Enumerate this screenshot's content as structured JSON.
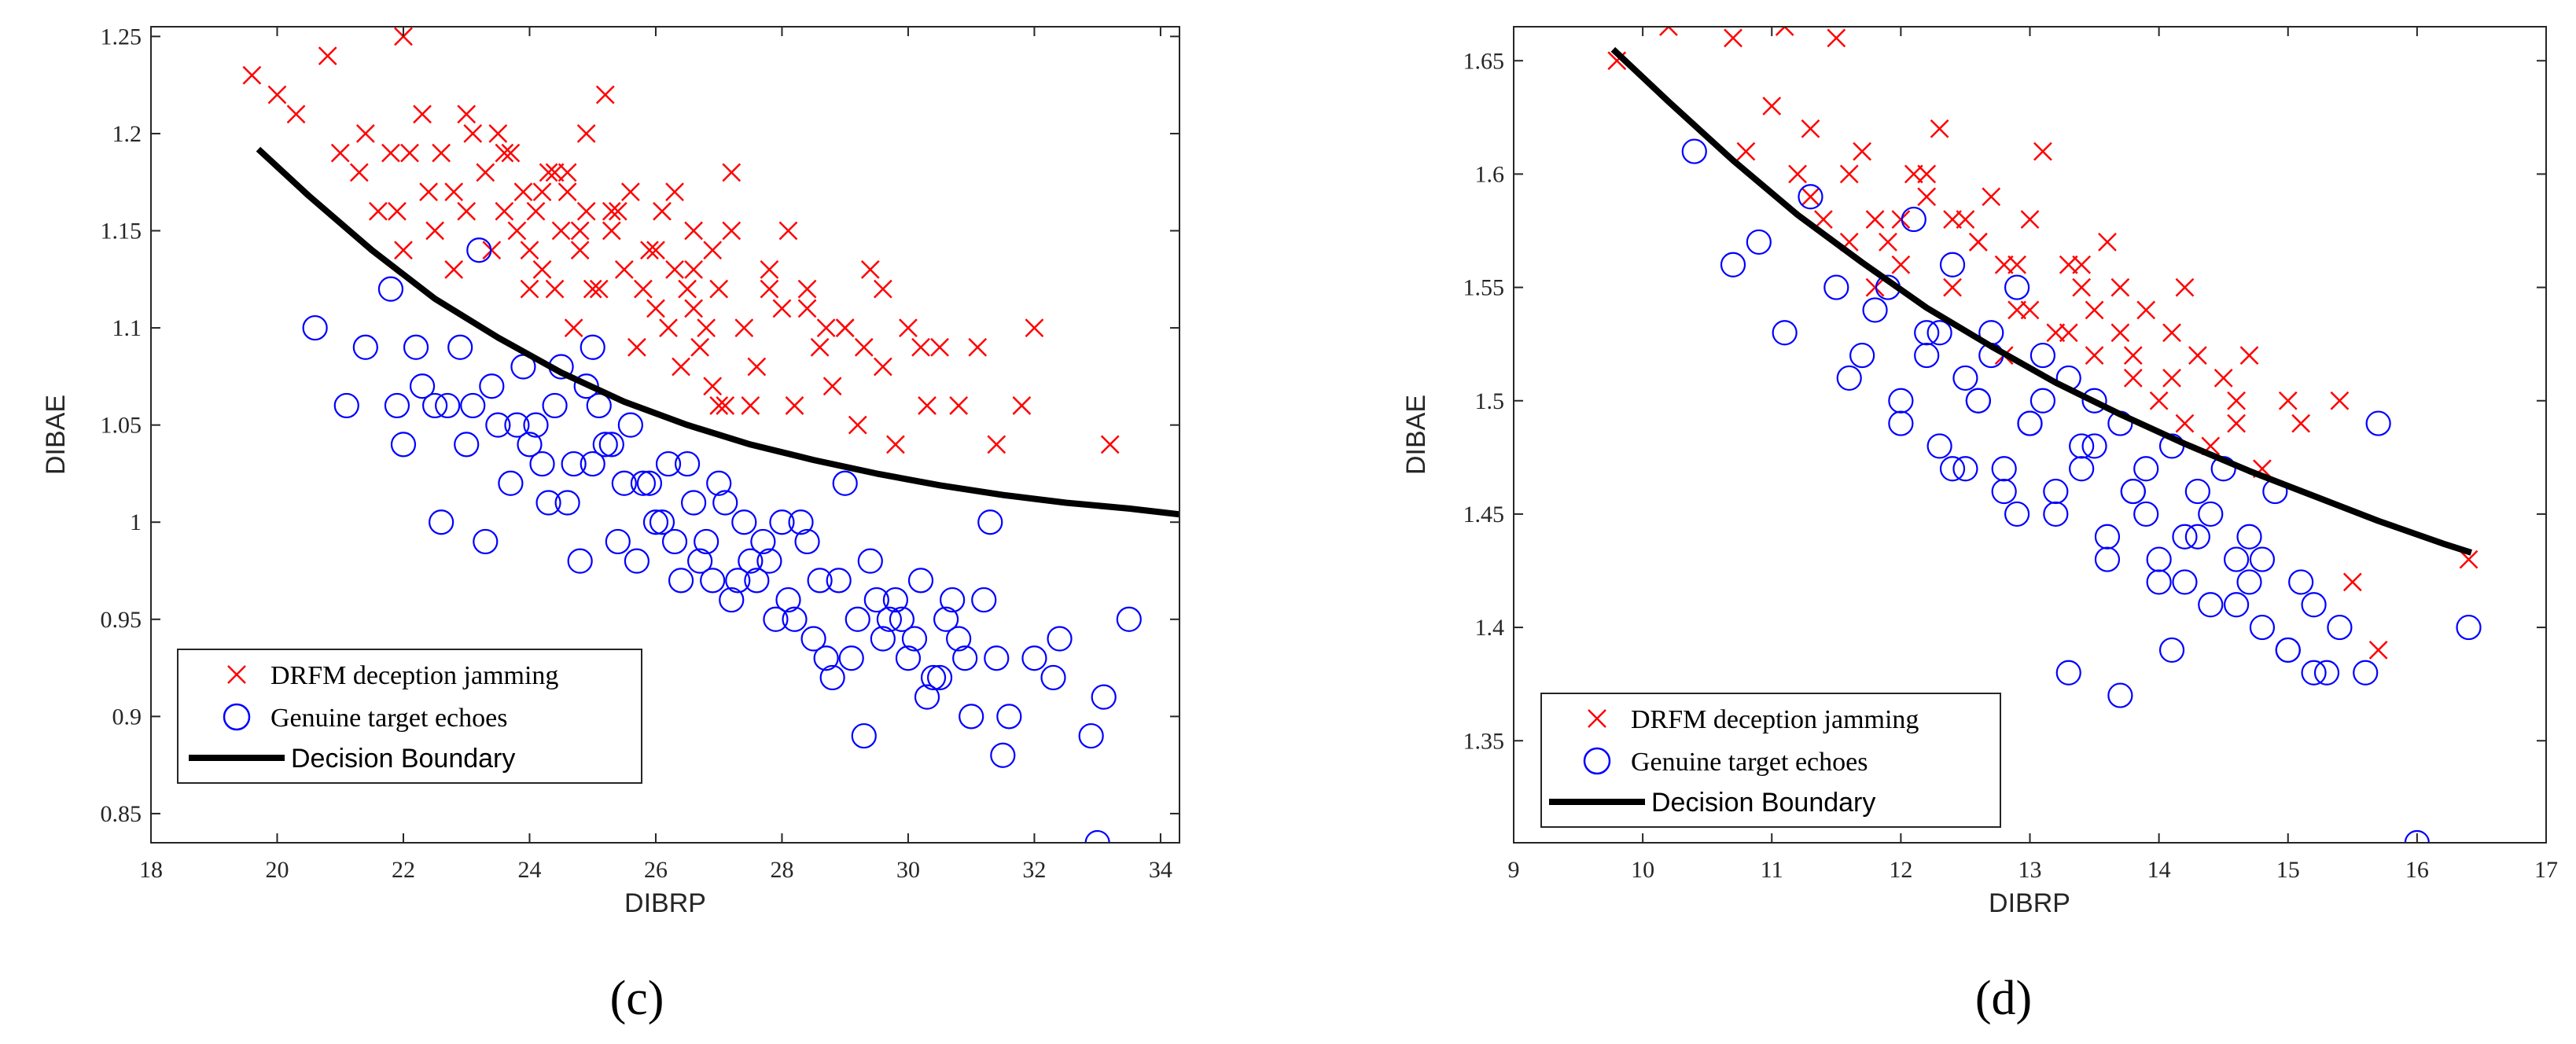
{
  "figure": {
    "captions": [
      "(c)",
      "(d)"
    ],
    "colors": {
      "jamming": "#ff0000",
      "genuine": "#0000ff",
      "boundary": "#000000",
      "axis": "#262626"
    }
  },
  "chart_data": [
    {
      "type": "scatter",
      "panel": "(c)",
      "title": "",
      "xlabel": "DIBRP",
      "ylabel": "DIBAE",
      "xlim": [
        18,
        34.3
      ],
      "ylim": [
        0.835,
        1.255
      ],
      "xticks": [
        18,
        20,
        22,
        24,
        26,
        28,
        30,
        32,
        34
      ],
      "yticks": [
        0.85,
        0.9,
        0.95,
        1,
        1.05,
        1.1,
        1.15,
        1.2,
        1.25
      ],
      "xtick_labels": [
        "18",
        "20",
        "22",
        "24",
        "26",
        "28",
        "30",
        "32",
        "34"
      ],
      "ytick_labels": [
        "0.85",
        "0.9",
        "0.95",
        "1",
        "1.05",
        "1.1",
        "1.15",
        "1.2",
        "1.25"
      ],
      "legend_position": "bottom-left",
      "series": [
        {
          "name": "DRFM deception jamming",
          "marker": "x",
          "color": "#ff0000",
          "x": [
            19.6,
            20.0,
            20.3,
            20.8,
            21.0,
            21.3,
            21.4,
            21.6,
            21.8,
            22.0,
            22.1,
            22.3,
            22.5,
            22.6,
            22.8,
            23.0,
            23.1,
            23.3,
            23.4,
            23.6,
            23.7,
            23.8,
            23.9,
            24.0,
            24.1,
            24.2,
            24.3,
            24.4,
            24.5,
            24.6,
            24.7,
            24.8,
            24.9,
            25.0,
            25.2,
            25.3,
            25.5,
            25.6,
            25.8,
            25.9,
            26.0,
            26.1,
            26.2,
            26.3,
            26.4,
            26.5,
            26.6,
            26.7,
            26.8,
            26.9,
            27.0,
            27.1,
            27.2,
            27.4,
            27.6,
            27.8,
            28.0,
            28.2,
            28.4,
            28.6,
            28.8,
            29.0,
            29.2,
            29.4,
            29.6,
            29.8,
            30.0,
            30.3,
            30.5,
            30.8,
            31.1,
            31.4,
            31.8,
            32.0,
            33.2,
            22.0,
            22.4,
            23.0,
            23.6,
            24.2,
            24.8,
            25.4,
            26.0,
            26.6,
            27.2,
            27.8,
            28.4,
            29.0,
            29.6,
            30.2,
            21.9,
            22.8,
            23.5,
            24.0,
            24.6,
            25.1,
            25.7,
            26.3,
            26.9,
            27.5,
            28.1,
            28.7,
            29.3,
            24.4,
            24.9,
            25.3,
            26.6,
            27.0
          ],
          "y": [
            1.23,
            1.22,
            1.21,
            1.24,
            1.19,
            1.18,
            1.2,
            1.16,
            1.19,
            1.25,
            1.19,
            1.21,
            1.15,
            1.19,
            1.17,
            1.21,
            1.2,
            1.18,
            1.14,
            1.16,
            1.19,
            1.15,
            1.17,
            1.14,
            1.16,
            1.13,
            1.18,
            1.12,
            1.15,
            1.17,
            1.1,
            1.14,
            1.16,
            1.12,
            1.22,
            1.15,
            1.13,
            1.17,
            1.12,
            1.14,
            1.11,
            1.16,
            1.1,
            1.13,
            1.08,
            1.12,
            1.15,
            1.09,
            1.1,
            1.07,
            1.12,
            1.06,
            1.18,
            1.1,
            1.08,
            1.13,
            1.11,
            1.06,
            1.12,
            1.09,
            1.07,
            1.1,
            1.05,
            1.13,
            1.08,
            1.04,
            1.1,
            1.06,
            1.09,
            1.06,
            1.09,
            1.04,
            1.06,
            1.1,
            1.04,
            1.14,
            1.17,
            1.16,
            1.19,
            1.17,
            1.15,
            1.16,
            1.14,
            1.13,
            1.15,
            1.12,
            1.11,
            1.1,
            1.12,
            1.09,
            1.16,
            1.13,
            1.2,
            1.12,
            1.18,
            1.12,
            1.09,
            1.17,
            1.14,
            1.06,
            1.15,
            1.1,
            1.09,
            1.18,
            1.2,
            1.16,
            1.11,
            1.06
          ]
        },
        {
          "name": "Genuine target echoes",
          "marker": "o",
          "color": "#0000ff",
          "x": [
            20.6,
            21.1,
            21.4,
            21.8,
            22.0,
            22.3,
            22.6,
            22.9,
            23.1,
            23.3,
            23.5,
            23.7,
            23.9,
            24.0,
            24.2,
            24.4,
            24.6,
            24.8,
            25.0,
            25.2,
            25.4,
            25.6,
            25.8,
            26.0,
            26.2,
            26.4,
            26.6,
            26.8,
            27.0,
            27.2,
            27.4,
            27.6,
            27.8,
            28.0,
            28.2,
            28.4,
            28.6,
            28.8,
            29.0,
            29.2,
            29.4,
            29.6,
            29.8,
            30.0,
            30.2,
            30.4,
            30.6,
            30.8,
            31.0,
            31.2,
            31.4,
            31.6,
            32.0,
            32.3,
            32.9,
            33.1,
            33.5,
            22.2,
            22.7,
            23.4,
            24.1,
            24.7,
            25.3,
            25.9,
            26.5,
            27.1,
            27.7,
            28.3,
            28.9,
            29.5,
            30.1,
            30.7,
            31.3,
            21.9,
            23.0,
            23.8,
            24.9,
            25.5,
            26.1,
            26.7,
            27.3,
            27.9,
            28.5,
            29.1,
            29.7,
            30.3,
            30.9,
            24.3,
            25.1,
            25.7,
            26.3,
            26.9,
            27.5,
            28.1,
            28.7,
            29.3,
            29.9,
            30.5,
            33.0,
            32.4,
            31.5,
            22.5,
            23.2,
            24.5,
            25.0
          ],
          "y": [
            1.1,
            1.06,
            1.09,
            1.12,
            1.04,
            1.07,
            1.0,
            1.09,
            1.06,
            0.99,
            1.05,
            1.02,
            1.08,
            1.04,
            1.03,
            1.06,
            1.01,
            0.98,
            1.03,
            1.04,
            0.99,
            1.05,
            1.02,
            1.0,
            1.03,
            0.97,
            1.01,
            0.99,
            1.02,
            0.96,
            1.0,
            0.97,
            0.98,
            1.0,
            0.95,
            0.99,
            0.97,
            0.92,
            1.02,
            0.95,
            0.98,
            0.94,
            0.96,
            0.93,
            0.97,
            0.92,
            0.95,
            0.94,
            0.9,
            0.96,
            0.93,
            0.9,
            0.93,
            0.92,
            0.89,
            0.91,
            0.95,
            1.09,
            1.06,
            1.07,
            1.05,
            1.03,
            1.04,
            1.02,
            1.03,
            1.01,
            0.99,
            1.0,
            0.97,
            0.96,
            0.94,
            0.96,
            1.0,
            1.06,
            1.04,
            1.05,
            1.07,
            1.02,
            1.0,
            0.98,
            0.97,
            0.95,
            0.94,
            0.93,
            0.95,
            0.91,
            0.93,
            1.01,
            1.06,
            0.98,
            0.99,
            0.97,
            0.98,
            0.96,
            0.93,
            0.89,
            0.95,
            0.92,
            0.835,
            0.94,
            0.88,
            1.06,
            1.14,
            1.08,
            1.09
          ]
        },
        {
          "name": "Decision Boundary",
          "marker": "line",
          "color": "#000000",
          "x": [
            19.7,
            20.5,
            21.5,
            22.5,
            23.5,
            24.5,
            25.5,
            26.5,
            27.5,
            28.5,
            29.5,
            30.5,
            31.5,
            32.5,
            33.5,
            34.3
          ],
          "y": [
            1.192,
            1.168,
            1.14,
            1.115,
            1.095,
            1.077,
            1.062,
            1.05,
            1.04,
            1.032,
            1.025,
            1.019,
            1.014,
            1.01,
            1.007,
            1.004
          ]
        }
      ]
    },
    {
      "type": "scatter",
      "panel": "(d)",
      "title": "",
      "xlabel": "DIBRP",
      "ylabel": "DIBAE",
      "xlim": [
        9,
        17
      ],
      "ylim": [
        1.305,
        1.665
      ],
      "xticks": [
        9,
        10,
        11,
        12,
        13,
        14,
        15,
        16,
        17
      ],
      "yticks": [
        1.35,
        1.4,
        1.45,
        1.5,
        1.55,
        1.6,
        1.65
      ],
      "xtick_labels": [
        "9",
        "10",
        "11",
        "12",
        "13",
        "14",
        "15",
        "16",
        "17"
      ],
      "ytick_labels": [
        "1.35",
        "1.4",
        "1.45",
        "1.5",
        "1.55",
        "1.6",
        "1.65"
      ],
      "legend_position": "bottom-left",
      "series": [
        {
          "name": "DRFM deception jamming",
          "marker": "x",
          "color": "#ff0000",
          "x": [
            9.8,
            10.2,
            10.7,
            10.8,
            11.0,
            11.1,
            11.2,
            11.3,
            11.4,
            11.5,
            11.6,
            11.7,
            11.8,
            11.9,
            12.0,
            12.1,
            12.2,
            12.3,
            12.4,
            12.5,
            12.6,
            12.7,
            12.8,
            12.9,
            13.0,
            13.1,
            13.2,
            13.3,
            13.4,
            13.5,
            13.6,
            13.7,
            13.8,
            13.9,
            14.0,
            14.1,
            14.2,
            14.3,
            14.4,
            14.5,
            14.6,
            14.7,
            14.8,
            15.0,
            15.1,
            15.4,
            15.5,
            15.7,
            16.4,
            11.3,
            11.8,
            12.2,
            12.6,
            13.0,
            13.4,
            13.8,
            14.2,
            12.4,
            12.9,
            13.3,
            13.7,
            14.1,
            11.6,
            12.0,
            12.8,
            13.5,
            14.6
          ],
          "y": [
            1.65,
            1.665,
            1.66,
            1.61,
            1.63,
            1.665,
            1.6,
            1.62,
            1.58,
            1.66,
            1.6,
            1.61,
            1.58,
            1.57,
            1.56,
            1.6,
            1.59,
            1.62,
            1.55,
            1.58,
            1.57,
            1.59,
            1.56,
            1.54,
            1.58,
            1.61,
            1.53,
            1.56,
            1.55,
            1.52,
            1.57,
            1.53,
            1.51,
            1.54,
            1.5,
            1.53,
            1.49,
            1.52,
            1.48,
            1.51,
            1.49,
            1.52,
            1.47,
            1.5,
            1.49,
            1.5,
            1.42,
            1.39,
            1.43,
            1.59,
            1.55,
            1.6,
            1.57,
            1.54,
            1.56,
            1.52,
            1.55,
            1.58,
            1.56,
            1.53,
            1.55,
            1.51,
            1.57,
            1.58,
            1.52,
            1.54,
            1.5
          ]
        },
        {
          "name": "Genuine target echoes",
          "marker": "o",
          "color": "#0000ff",
          "x": [
            10.4,
            10.7,
            10.9,
            11.1,
            11.3,
            11.5,
            11.7,
            11.9,
            12.0,
            12.1,
            12.2,
            12.3,
            12.4,
            12.5,
            12.6,
            12.7,
            12.8,
            12.9,
            13.0,
            13.1,
            13.2,
            13.3,
            13.4,
            13.5,
            13.6,
            13.7,
            13.8,
            13.9,
            14.0,
            14.1,
            14.2,
            14.3,
            14.4,
            14.5,
            14.6,
            14.7,
            14.8,
            14.9,
            15.0,
            15.1,
            15.2,
            15.3,
            15.4,
            15.6,
            15.7,
            16.0,
            16.4,
            11.6,
            12.0,
            12.4,
            12.8,
            13.2,
            13.6,
            14.0,
            14.4,
            14.8,
            15.2,
            11.8,
            12.2,
            12.6,
            13.0,
            13.4,
            13.8,
            14.2,
            14.6,
            15.0,
            12.3,
            12.7,
            13.1,
            13.5,
            13.9,
            14.3,
            14.7,
            13.3,
            13.7,
            14.1,
            12.5,
            12.9
          ],
          "y": [
            1.61,
            1.56,
            1.57,
            1.53,
            1.59,
            1.55,
            1.52,
            1.55,
            1.5,
            1.58,
            1.53,
            1.48,
            1.56,
            1.51,
            1.5,
            1.53,
            1.47,
            1.55,
            1.49,
            1.52,
            1.46,
            1.51,
            1.48,
            1.5,
            1.44,
            1.49,
            1.46,
            1.47,
            1.43,
            1.48,
            1.42,
            1.46,
            1.45,
            1.47,
            1.41,
            1.44,
            1.43,
            1.46,
            1.39,
            1.42,
            1.41,
            1.38,
            1.4,
            1.38,
            1.49,
            1.305,
            1.4,
            1.51,
            1.49,
            1.47,
            1.46,
            1.45,
            1.43,
            1.42,
            1.41,
            1.4,
            1.38,
            1.54,
            1.52,
            1.5,
            1.49,
            1.47,
            1.46,
            1.44,
            1.43,
            1.39,
            1.53,
            1.52,
            1.5,
            1.48,
            1.45,
            1.44,
            1.42,
            1.38,
            1.37,
            1.39,
            1.47,
            1.45
          ]
        },
        {
          "name": "Decision Boundary",
          "marker": "line",
          "color": "#000000",
          "x": [
            9.77,
            10.2,
            10.7,
            11.2,
            11.7,
            12.2,
            12.7,
            13.2,
            13.7,
            14.2,
            14.7,
            15.2,
            15.7,
            16.2,
            16.42
          ],
          "y": [
            1.655,
            1.632,
            1.606,
            1.582,
            1.561,
            1.541,
            1.524,
            1.508,
            1.494,
            1.481,
            1.469,
            1.458,
            1.447,
            1.437,
            1.433
          ]
        }
      ]
    }
  ]
}
